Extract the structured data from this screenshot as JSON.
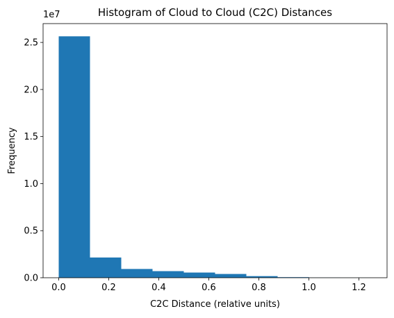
{
  "chart_data": {
    "type": "bar",
    "title": "Histogram of Cloud to Cloud (C2C) Distances",
    "xlabel": "C2C Distance (relative units)",
    "ylabel": "Frequency",
    "y_multiplier_label": "1e7",
    "xlim": [
      -0.0625,
      1.3125
    ],
    "ylim": [
      0,
      27000000
    ],
    "x_ticks": [
      0.0,
      0.2,
      0.4,
      0.6,
      0.8,
      1.0,
      1.2
    ],
    "x_tick_labels": [
      "0.0",
      "0.2",
      "0.4",
      "0.6",
      "0.8",
      "1.0",
      "1.2"
    ],
    "y_ticks": [
      0,
      5000000,
      10000000,
      15000000,
      20000000,
      25000000
    ],
    "y_tick_labels": [
      "0.0",
      "0.5",
      "1.0",
      "1.5",
      "2.0",
      "2.5"
    ],
    "bin_edges": [
      0.0,
      0.125,
      0.25,
      0.375,
      0.5,
      0.625,
      0.75,
      0.875,
      1.0,
      1.125,
      1.25
    ],
    "values": [
      25650000,
      2150000,
      930000,
      700000,
      550000,
      400000,
      170000,
      60000,
      15000,
      5000
    ],
    "bar_color": "#1f77b4",
    "grid": false
  }
}
